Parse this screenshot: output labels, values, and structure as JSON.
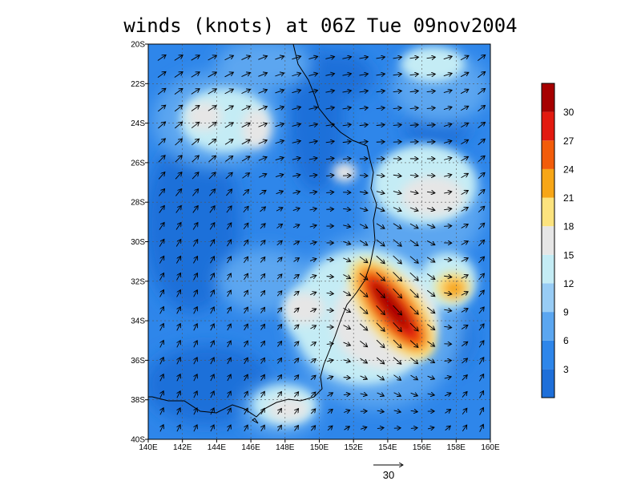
{
  "title": "winds (knots) at 06Z Tue 09nov2004",
  "map": {
    "lon_range": [
      140,
      160
    ],
    "lat_range": [
      -40,
      -20
    ],
    "x_ticks": [
      "140E",
      "142E",
      "144E",
      "146E",
      "148E",
      "150E",
      "152E",
      "154E",
      "156E",
      "158E",
      "160E"
    ],
    "y_ticks": [
      "20S",
      "22S",
      "24S",
      "26S",
      "28S",
      "30S",
      "32S",
      "34S",
      "36S",
      "38S",
      "40S"
    ]
  },
  "colorbar": {
    "labels": [
      "3",
      "6",
      "9",
      "12",
      "15",
      "18",
      "21",
      "24",
      "27",
      "30"
    ],
    "colors": [
      "#1e6fd9",
      "#2e86ea",
      "#5ba6f0",
      "#98ccf5",
      "#c4ecf5",
      "#e6e6e6",
      "#fce37e",
      "#f7a617",
      "#f25c0a",
      "#e21a10",
      "#a60000"
    ]
  },
  "reference_vector": {
    "label": "30"
  }
}
